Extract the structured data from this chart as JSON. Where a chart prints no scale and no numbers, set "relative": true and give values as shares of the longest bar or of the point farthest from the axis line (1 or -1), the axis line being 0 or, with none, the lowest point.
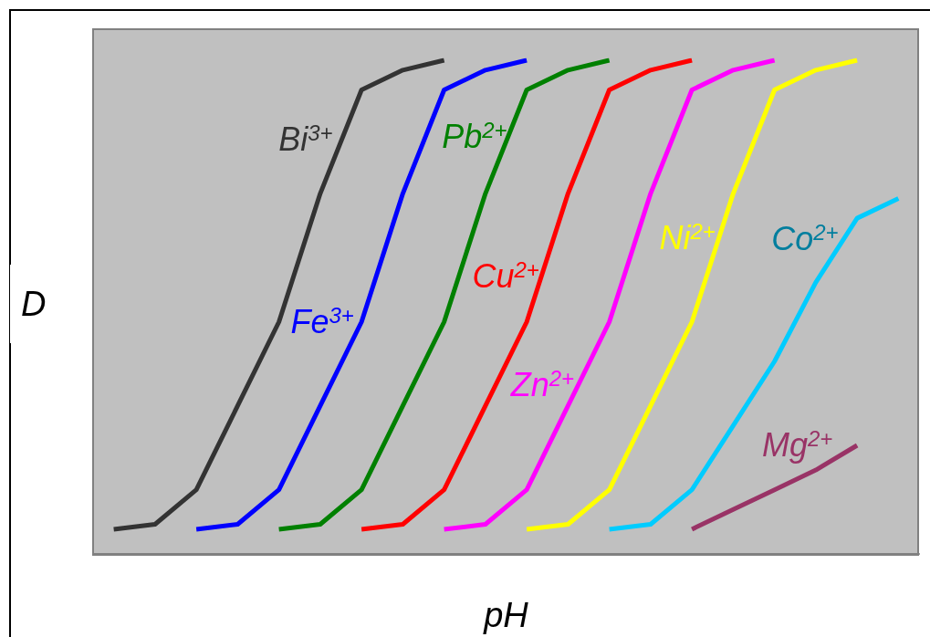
{
  "chart_data": {
    "type": "line",
    "xlabel": "pH",
    "ylabel": "D",
    "relative": true,
    "legend": false,
    "marker": "none",
    "line_style": "solid",
    "categories": [
      null,
      null,
      null,
      null,
      null,
      null,
      null,
      null,
      null,
      null,
      null,
      null,
      null,
      null,
      null,
      null,
      null,
      null,
      null,
      null
    ],
    "series": [
      {
        "name": "Bi$^{3+}$",
        "color": "#333333",
        "values": [
          0.05,
          0.06,
          0.13,
          0.3,
          0.47,
          0.73,
          0.94,
          0.98,
          1,
          null,
          null,
          null,
          null,
          null,
          null,
          null,
          null,
          null,
          null,
          null
        ]
      },
      {
        "name": "Fe$^{3+}$",
        "color": "#0000ff",
        "values": [
          null,
          null,
          0.05,
          0.06,
          0.13,
          0.3,
          0.47,
          0.73,
          0.94,
          0.98,
          1,
          null,
          null,
          null,
          null,
          null,
          null,
          null,
          null,
          null
        ]
      },
      {
        "name": "Pb$^{2+}$",
        "color": "#008000",
        "values": [
          null,
          null,
          null,
          null,
          0.05,
          0.06,
          0.13,
          0.3,
          0.47,
          0.73,
          0.94,
          0.98,
          1,
          null,
          null,
          null,
          null,
          null,
          null,
          null
        ]
      },
      {
        "name": "Cu$^{2+}$",
        "color": "#ff0000",
        "values": [
          null,
          null,
          null,
          null,
          null,
          null,
          0.05,
          0.06,
          0.13,
          0.3,
          0.47,
          0.73,
          0.94,
          0.98,
          1,
          null,
          null,
          null,
          null,
          null
        ]
      },
      {
        "name": "Zn$^{2+}$",
        "color": "#ff00ff",
        "values": [
          null,
          null,
          null,
          null,
          null,
          null,
          null,
          null,
          0.05,
          0.06,
          0.13,
          0.3,
          0.47,
          0.73,
          0.94,
          0.98,
          1,
          null,
          null,
          null
        ]
      },
      {
        "name": "Ni$^{2+}$",
        "color": "#ffff00",
        "values": [
          null,
          null,
          null,
          null,
          null,
          null,
          null,
          null,
          null,
          null,
          0.05,
          0.06,
          0.13,
          0.3,
          0.47,
          0.73,
          0.94,
          0.98,
          1,
          null
        ]
      },
      {
        "name": "Co$^{2+}$",
        "color": "#00ccff",
        "values": [
          null,
          null,
          null,
          null,
          null,
          null,
          null,
          null,
          null,
          null,
          null,
          null,
          0.05,
          0.06,
          0.13,
          0.26,
          0.39,
          0.55,
          0.68,
          0.72
        ]
      },
      {
        "name": "Mg$^{2+}$",
        "color": "#993366",
        "values": [
          null,
          null,
          null,
          null,
          null,
          null,
          null,
          null,
          null,
          null,
          null,
          null,
          null,
          null,
          0.05,
          0.09,
          0.13,
          0.17,
          0.22,
          null
        ]
      }
    ]
  }
}
